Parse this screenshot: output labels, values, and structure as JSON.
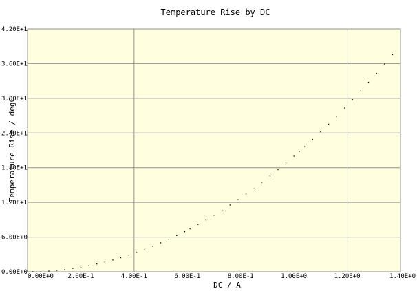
{
  "chart_data": {
    "type": "scatter",
    "title": "Temperature Rise by DC",
    "xlabel": "DC / A",
    "ylabel": "Temperature Rise / degC",
    "xlim": [
      0,
      1.4
    ],
    "ylim": [
      0,
      42
    ],
    "x_ticks": [
      {
        "value": 0,
        "label": "0.00E+0"
      },
      {
        "value": 0.2,
        "label": "2.00E-1"
      },
      {
        "value": 0.4,
        "label": "4.00E-1"
      },
      {
        "value": 0.6,
        "label": "6.00E-1"
      },
      {
        "value": 0.8,
        "label": "8.00E-1"
      },
      {
        "value": 1.0,
        "label": "1.00E+0"
      },
      {
        "value": 1.2,
        "label": "1.20E+0"
      },
      {
        "value": 1.4,
        "label": "1.40E+0"
      }
    ],
    "y_ticks": [
      {
        "value": 0,
        "label": "0.00E+0"
      },
      {
        "value": 6,
        "label": "6.00E+0"
      },
      {
        "value": 12,
        "label": "1.20E+1"
      },
      {
        "value": 18,
        "label": "1.80E+1"
      },
      {
        "value": 24,
        "label": "2.40E+1"
      },
      {
        "value": 30,
        "label": "3.00E+1"
      },
      {
        "value": 36,
        "label": "3.60E+1"
      },
      {
        "value": 42,
        "label": "4.20E+1"
      }
    ],
    "grid_x": [
      0.4,
      1.2
    ],
    "grid_y": [
      6,
      12,
      18,
      24,
      30,
      36
    ],
    "background_color": "#ffffe0",
    "grid_color": "#909090",
    "point_color": "#000000",
    "series": [
      {
        "x": [
          0.02,
          0.05,
          0.08,
          0.11,
          0.14,
          0.17,
          0.2,
          0.23,
          0.26,
          0.29,
          0.32,
          0.35,
          0.38,
          0.41,
          0.44,
          0.47,
          0.5,
          0.53,
          0.56,
          0.59,
          0.61,
          0.64,
          0.67,
          0.7,
          0.73,
          0.76,
          0.79,
          0.82,
          0.85,
          0.88,
          0.91,
          0.94,
          0.97,
          1.0,
          1.02,
          1.04,
          1.07,
          1.1,
          1.13,
          1.16,
          1.19,
          1.22,
          1.25,
          1.28,
          1.31,
          1.34,
          1.37
        ],
        "y": [
          0.01,
          0.05,
          0.13,
          0.24,
          0.4,
          0.58,
          0.8,
          1.06,
          1.35,
          1.68,
          2.05,
          2.45,
          2.89,
          3.36,
          3.87,
          4.42,
          5.0,
          5.62,
          6.27,
          6.96,
          7.44,
          8.19,
          8.98,
          9.8,
          10.66,
          11.55,
          12.48,
          13.45,
          14.45,
          15.49,
          16.56,
          17.67,
          18.82,
          20.0,
          20.81,
          21.63,
          22.9,
          24.2,
          25.54,
          26.91,
          28.32,
          29.77,
          31.25,
          32.77,
          34.32,
          35.91,
          37.54
        ]
      }
    ]
  }
}
